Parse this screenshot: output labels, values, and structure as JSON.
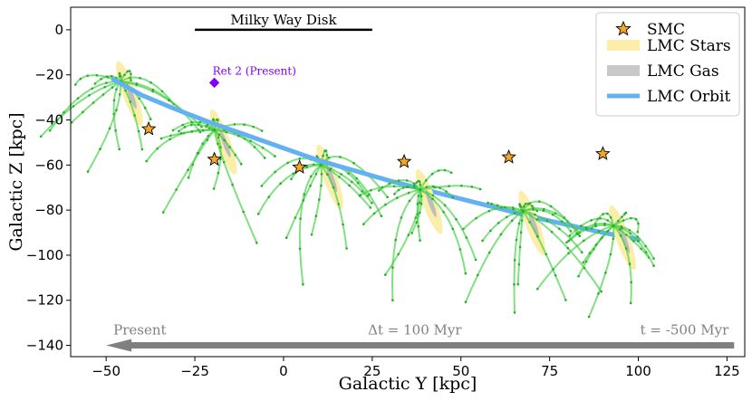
{
  "chart_data": {
    "type": "scatter",
    "xlabel": "Galactic Y [kpc]",
    "ylabel": "Galactic Z [kpc]",
    "xlim": [
      -60,
      130
    ],
    "ylim": [
      -145,
      10
    ],
    "xticks": [
      "−50",
      "−25",
      "0",
      "25",
      "50",
      "75",
      "100",
      "125"
    ],
    "xtick_values": [
      -50,
      -25,
      0,
      25,
      50,
      75,
      100,
      125
    ],
    "yticks": [
      "0",
      "−20",
      "−40",
      "−60",
      "−80",
      "−100",
      "−120",
      "−140"
    ],
    "ytick_values": [
      0,
      -20,
      -40,
      -60,
      -80,
      -100,
      -120,
      -140
    ],
    "disk": {
      "label": "Milky Way Disk",
      "y_range": [
        -25,
        25
      ],
      "z": 0
    },
    "ret2": {
      "label": "Ret 2 (Present)",
      "y": -19.5,
      "z": -23.5,
      "color": "#8000ff"
    },
    "lmc_orbit": {
      "name": "LMC Orbit",
      "color": "#63b1f2",
      "y": [
        -48,
        -40,
        -30,
        -20,
        -10,
        0,
        10,
        20,
        30,
        40,
        50,
        60,
        70,
        80,
        90,
        100
      ],
      "z": [
        -22,
        -29,
        -35.5,
        -41.5,
        -47,
        -52.5,
        -58,
        -62.5,
        -67,
        -71,
        -75,
        -79,
        -83,
        -86.5,
        -90,
        -93
      ]
    },
    "snapshots": [
      {
        "y": -46,
        "z": -23,
        "smc_y": -38,
        "smc_z": -44
      },
      {
        "y": -19.5,
        "z": -44.5,
        "smc_y": -19.5,
        "smc_z": -57.5
      },
      {
        "y": 10.5,
        "z": -60,
        "smc_y": 4.5,
        "smc_z": -61
      },
      {
        "y": 38.5,
        "z": -71,
        "smc_y": 34,
        "smc_z": -58.5
      },
      {
        "y": 67.5,
        "z": -80.5,
        "smc_y": 63.5,
        "smc_z": -56.5
      },
      {
        "y": 93,
        "z": -87,
        "smc_y": 90,
        "smc_z": -55
      }
    ],
    "legend": [
      {
        "label": "SMC",
        "kind": "star",
        "color": "#f5a623"
      },
      {
        "label": "LMC Stars",
        "kind": "patch",
        "color": "#fbeeaa"
      },
      {
        "label": "LMC Gas",
        "kind": "patch",
        "color": "#c8c8c8"
      },
      {
        "label": "LMC Orbit",
        "kind": "line",
        "color": "#63b1f2"
      }
    ],
    "time_arrow": {
      "left_label": "Present",
      "center_label": "Δt = 100 Myr",
      "right_label": "t = -500 Myr",
      "y_range": [
        -50,
        127
      ],
      "z": -140
    },
    "stream_color": "#3ecf3e"
  }
}
